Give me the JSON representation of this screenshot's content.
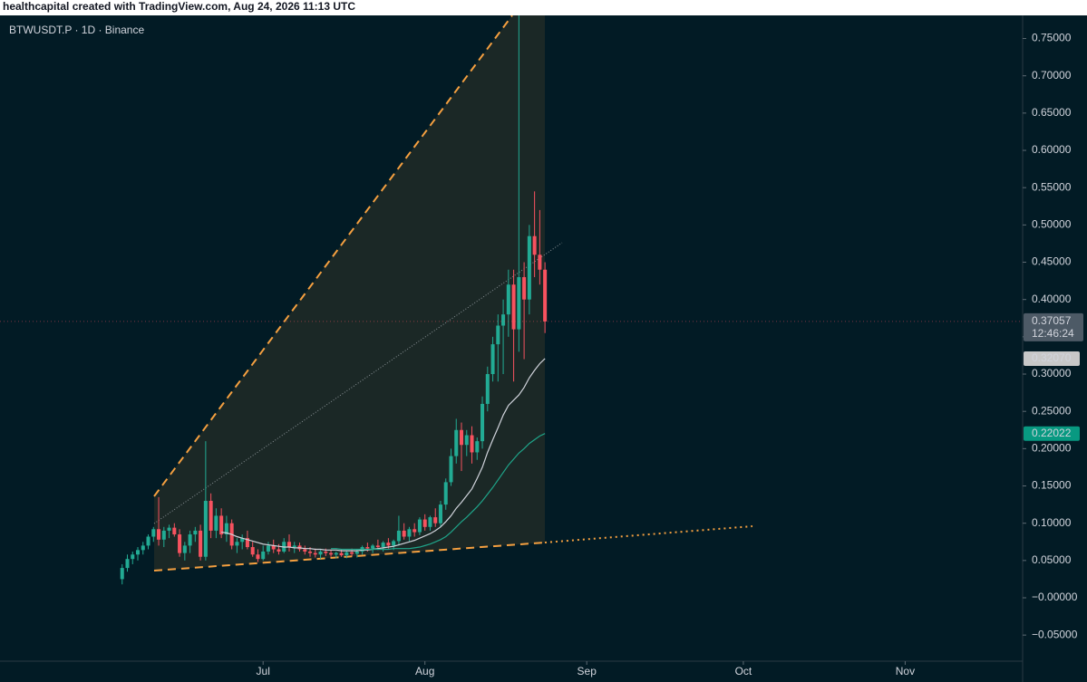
{
  "header": "healthcapital created with TradingView.com, Aug 24, 2026 11:13 UTC",
  "chart_data": {
    "type": "candlestick",
    "title": "BTWUSDT.P · 1D · Binance",
    "up_color": "#22ab94",
    "down_color": "#f7525f",
    "grid": false,
    "x": [
      0,
      1,
      2,
      3,
      4,
      5,
      6,
      7,
      8,
      9,
      10,
      11,
      12,
      13,
      14,
      15,
      16,
      17,
      18,
      19,
      20,
      21,
      22,
      23,
      24,
      25,
      26,
      27,
      28,
      29,
      30,
      31,
      32,
      33,
      34,
      35,
      36,
      37,
      38,
      39,
      40,
      41,
      42,
      43,
      44,
      45,
      46,
      47,
      48,
      49,
      50,
      51,
      52,
      53,
      54,
      55,
      56,
      57,
      58,
      59,
      60,
      61,
      62,
      63,
      64,
      65,
      66,
      67,
      68,
      69,
      70,
      71,
      72,
      73,
      74,
      75,
      76,
      77,
      78,
      79,
      80,
      81
    ],
    "open": [
      0.025,
      0.04,
      0.052,
      0.058,
      0.064,
      0.07,
      0.082,
      0.092,
      0.078,
      0.09,
      0.094,
      0.085,
      0.06,
      0.07,
      0.085,
      0.09,
      0.055,
      0.13,
      0.09,
      0.11,
      0.085,
      0.1,
      0.07,
      0.075,
      0.08,
      0.068,
      0.058,
      0.052,
      0.062,
      0.07,
      0.065,
      0.062,
      0.075,
      0.068,
      0.07,
      0.065,
      0.062,
      0.06,
      0.058,
      0.062,
      0.06,
      0.058,
      0.06,
      0.057,
      0.061,
      0.059,
      0.062,
      0.068,
      0.066,
      0.07,
      0.068,
      0.074,
      0.07,
      0.076,
      0.09,
      0.082,
      0.092,
      0.088,
      0.105,
      0.095,
      0.108,
      0.1,
      0.125,
      0.155,
      0.19,
      0.225,
      0.205,
      0.218,
      0.195,
      0.21,
      0.26,
      0.3,
      0.34,
      0.365,
      0.38,
      0.42,
      0.36,
      0.43,
      0.4,
      0.485,
      0.46,
      0.44
    ],
    "high": [
      0.045,
      0.058,
      0.062,
      0.068,
      0.075,
      0.085,
      0.095,
      0.135,
      0.095,
      0.098,
      0.1,
      0.092,
      0.075,
      0.09,
      0.095,
      0.098,
      0.21,
      0.14,
      0.12,
      0.12,
      0.11,
      0.105,
      0.08,
      0.085,
      0.09,
      0.075,
      0.065,
      0.07,
      0.075,
      0.078,
      0.072,
      0.08,
      0.085,
      0.075,
      0.074,
      0.07,
      0.068,
      0.066,
      0.064,
      0.066,
      0.064,
      0.062,
      0.065,
      0.063,
      0.066,
      0.065,
      0.07,
      0.074,
      0.072,
      0.078,
      0.076,
      0.08,
      0.078,
      0.11,
      0.1,
      0.095,
      0.1,
      0.108,
      0.112,
      0.11,
      0.12,
      0.13,
      0.16,
      0.2,
      0.24,
      0.235,
      0.225,
      0.23,
      0.215,
      0.27,
      0.31,
      0.35,
      0.38,
      0.4,
      0.44,
      0.44,
      0.79,
      0.45,
      0.5,
      0.545,
      0.52,
      0.45
    ],
    "low": [
      0.018,
      0.035,
      0.045,
      0.05,
      0.058,
      0.065,
      0.075,
      0.07,
      0.068,
      0.08,
      0.082,
      0.055,
      0.05,
      0.06,
      0.075,
      0.05,
      0.05,
      0.08,
      0.08,
      0.08,
      0.075,
      0.065,
      0.06,
      0.065,
      0.065,
      0.055,
      0.048,
      0.05,
      0.058,
      0.06,
      0.058,
      0.06,
      0.062,
      0.06,
      0.062,
      0.058,
      0.055,
      0.054,
      0.052,
      0.056,
      0.055,
      0.053,
      0.055,
      0.053,
      0.056,
      0.054,
      0.058,
      0.062,
      0.06,
      0.064,
      0.062,
      0.066,
      0.064,
      0.07,
      0.078,
      0.076,
      0.082,
      0.084,
      0.09,
      0.09,
      0.095,
      0.095,
      0.118,
      0.15,
      0.18,
      0.17,
      0.19,
      0.18,
      0.185,
      0.2,
      0.25,
      0.29,
      0.29,
      0.3,
      0.35,
      0.29,
      0.33,
      0.32,
      0.38,
      0.43,
      0.42,
      0.355
    ],
    "close": [
      0.04,
      0.052,
      0.058,
      0.064,
      0.07,
      0.082,
      0.092,
      0.078,
      0.09,
      0.094,
      0.085,
      0.06,
      0.07,
      0.085,
      0.09,
      0.055,
      0.13,
      0.09,
      0.11,
      0.085,
      0.1,
      0.07,
      0.075,
      0.08,
      0.068,
      0.058,
      0.052,
      0.062,
      0.07,
      0.065,
      0.062,
      0.075,
      0.068,
      0.07,
      0.065,
      0.062,
      0.06,
      0.058,
      0.062,
      0.06,
      0.058,
      0.06,
      0.057,
      0.061,
      0.059,
      0.062,
      0.068,
      0.066,
      0.07,
      0.068,
      0.074,
      0.07,
      0.076,
      0.09,
      0.082,
      0.092,
      0.088,
      0.105,
      0.095,
      0.108,
      0.1,
      0.125,
      0.155,
      0.19,
      0.225,
      0.205,
      0.218,
      0.195,
      0.21,
      0.26,
      0.3,
      0.34,
      0.365,
      0.38,
      0.42,
      0.36,
      0.43,
      0.4,
      0.485,
      0.46,
      0.44,
      0.37057
    ],
    "last_label": "0.37057",
    "countdown": "12:46:24",
    "last_label_color": "#4d5a66",
    "lines": [
      {
        "color": "#d1d4dc",
        "label_bg": "#c8c8c8",
        "label_color": "#131722",
        "end_label": "0.32070",
        "values": [
          null,
          null,
          null,
          null,
          null,
          null,
          null,
          null,
          null,
          null,
          null,
          null,
          null,
          null,
          null,
          null,
          null,
          null,
          null,
          0.088,
          0.087,
          0.085,
          0.082,
          0.08,
          0.078,
          0.076,
          0.074,
          0.072,
          0.071,
          0.07,
          0.069,
          0.068,
          0.068,
          0.067,
          0.067,
          0.066,
          0.066,
          0.065,
          0.065,
          0.064,
          0.064,
          0.064,
          0.063,
          0.063,
          0.063,
          0.063,
          0.064,
          0.064,
          0.065,
          0.066,
          0.067,
          0.068,
          0.069,
          0.071,
          0.073,
          0.075,
          0.077,
          0.08,
          0.083,
          0.086,
          0.09,
          0.095,
          0.102,
          0.11,
          0.12,
          0.128,
          0.137,
          0.146,
          0.16,
          0.175,
          0.195,
          0.212,
          0.228,
          0.245,
          0.258,
          0.265,
          0.272,
          0.282,
          0.295,
          0.305,
          0.314,
          0.3207
        ]
      },
      {
        "color": "#1fa58a",
        "label_bg": "#089981",
        "label_color": "#ffffff",
        "end_label": "0.22022",
        "values": [
          null,
          null,
          null,
          null,
          null,
          null,
          null,
          null,
          null,
          null,
          null,
          null,
          null,
          null,
          null,
          null,
          null,
          null,
          null,
          null,
          null,
          null,
          null,
          null,
          null,
          null,
          null,
          null,
          null,
          null,
          null,
          null,
          null,
          null,
          null,
          null,
          null,
          null,
          null,
          null,
          0.066,
          0.066,
          0.065,
          0.065,
          0.065,
          0.065,
          0.065,
          0.065,
          0.065,
          0.065,
          0.065,
          0.065,
          0.066,
          0.066,
          0.066,
          0.066,
          0.067,
          0.068,
          0.07,
          0.072,
          0.075,
          0.078,
          0.082,
          0.088,
          0.095,
          0.102,
          0.108,
          0.115,
          0.122,
          0.13,
          0.139,
          0.148,
          0.158,
          0.168,
          0.178,
          0.186,
          0.194,
          0.2,
          0.207,
          0.212,
          0.217,
          0.22022
        ]
      }
    ],
    "xlim": [
      -23.4,
      172.5
    ],
    "xticks": [
      {
        "value": 27,
        "label": "Jul"
      },
      {
        "value": 58,
        "label": "Aug"
      },
      {
        "value": 89,
        "label": "Sep"
      },
      {
        "value": 119,
        "label": "Oct"
      },
      {
        "value": 150,
        "label": "Nov"
      }
    ],
    "ylim": [
      -0.085,
      0.781
    ],
    "yticks": [
      {
        "value": 0.75,
        "label": "0.75000"
      },
      {
        "value": 0.7,
        "label": "0.70000"
      },
      {
        "value": 0.65,
        "label": "0.65000"
      },
      {
        "value": 0.6,
        "label": "0.60000"
      },
      {
        "value": 0.55,
        "label": "0.55000"
      },
      {
        "value": 0.5,
        "label": "0.50000"
      },
      {
        "value": 0.45,
        "label": "0.45000"
      },
      {
        "value": 0.4,
        "label": "0.40000"
      },
      {
        "value": 0.35,
        "label": "0.35000"
      },
      {
        "value": 0.3,
        "label": "0.30000"
      },
      {
        "value": 0.25,
        "label": "0.25000"
      },
      {
        "value": 0.2,
        "label": "0.20000"
      },
      {
        "value": 0.15,
        "label": "0.15000"
      },
      {
        "value": 0.1,
        "label": "0.10000"
      },
      {
        "value": 0.05,
        "label": "0.05000"
      },
      {
        "value": 0,
        "label": "−0.00000"
      },
      {
        "value": -0.05,
        "label": "−0.05000"
      }
    ]
  }
}
